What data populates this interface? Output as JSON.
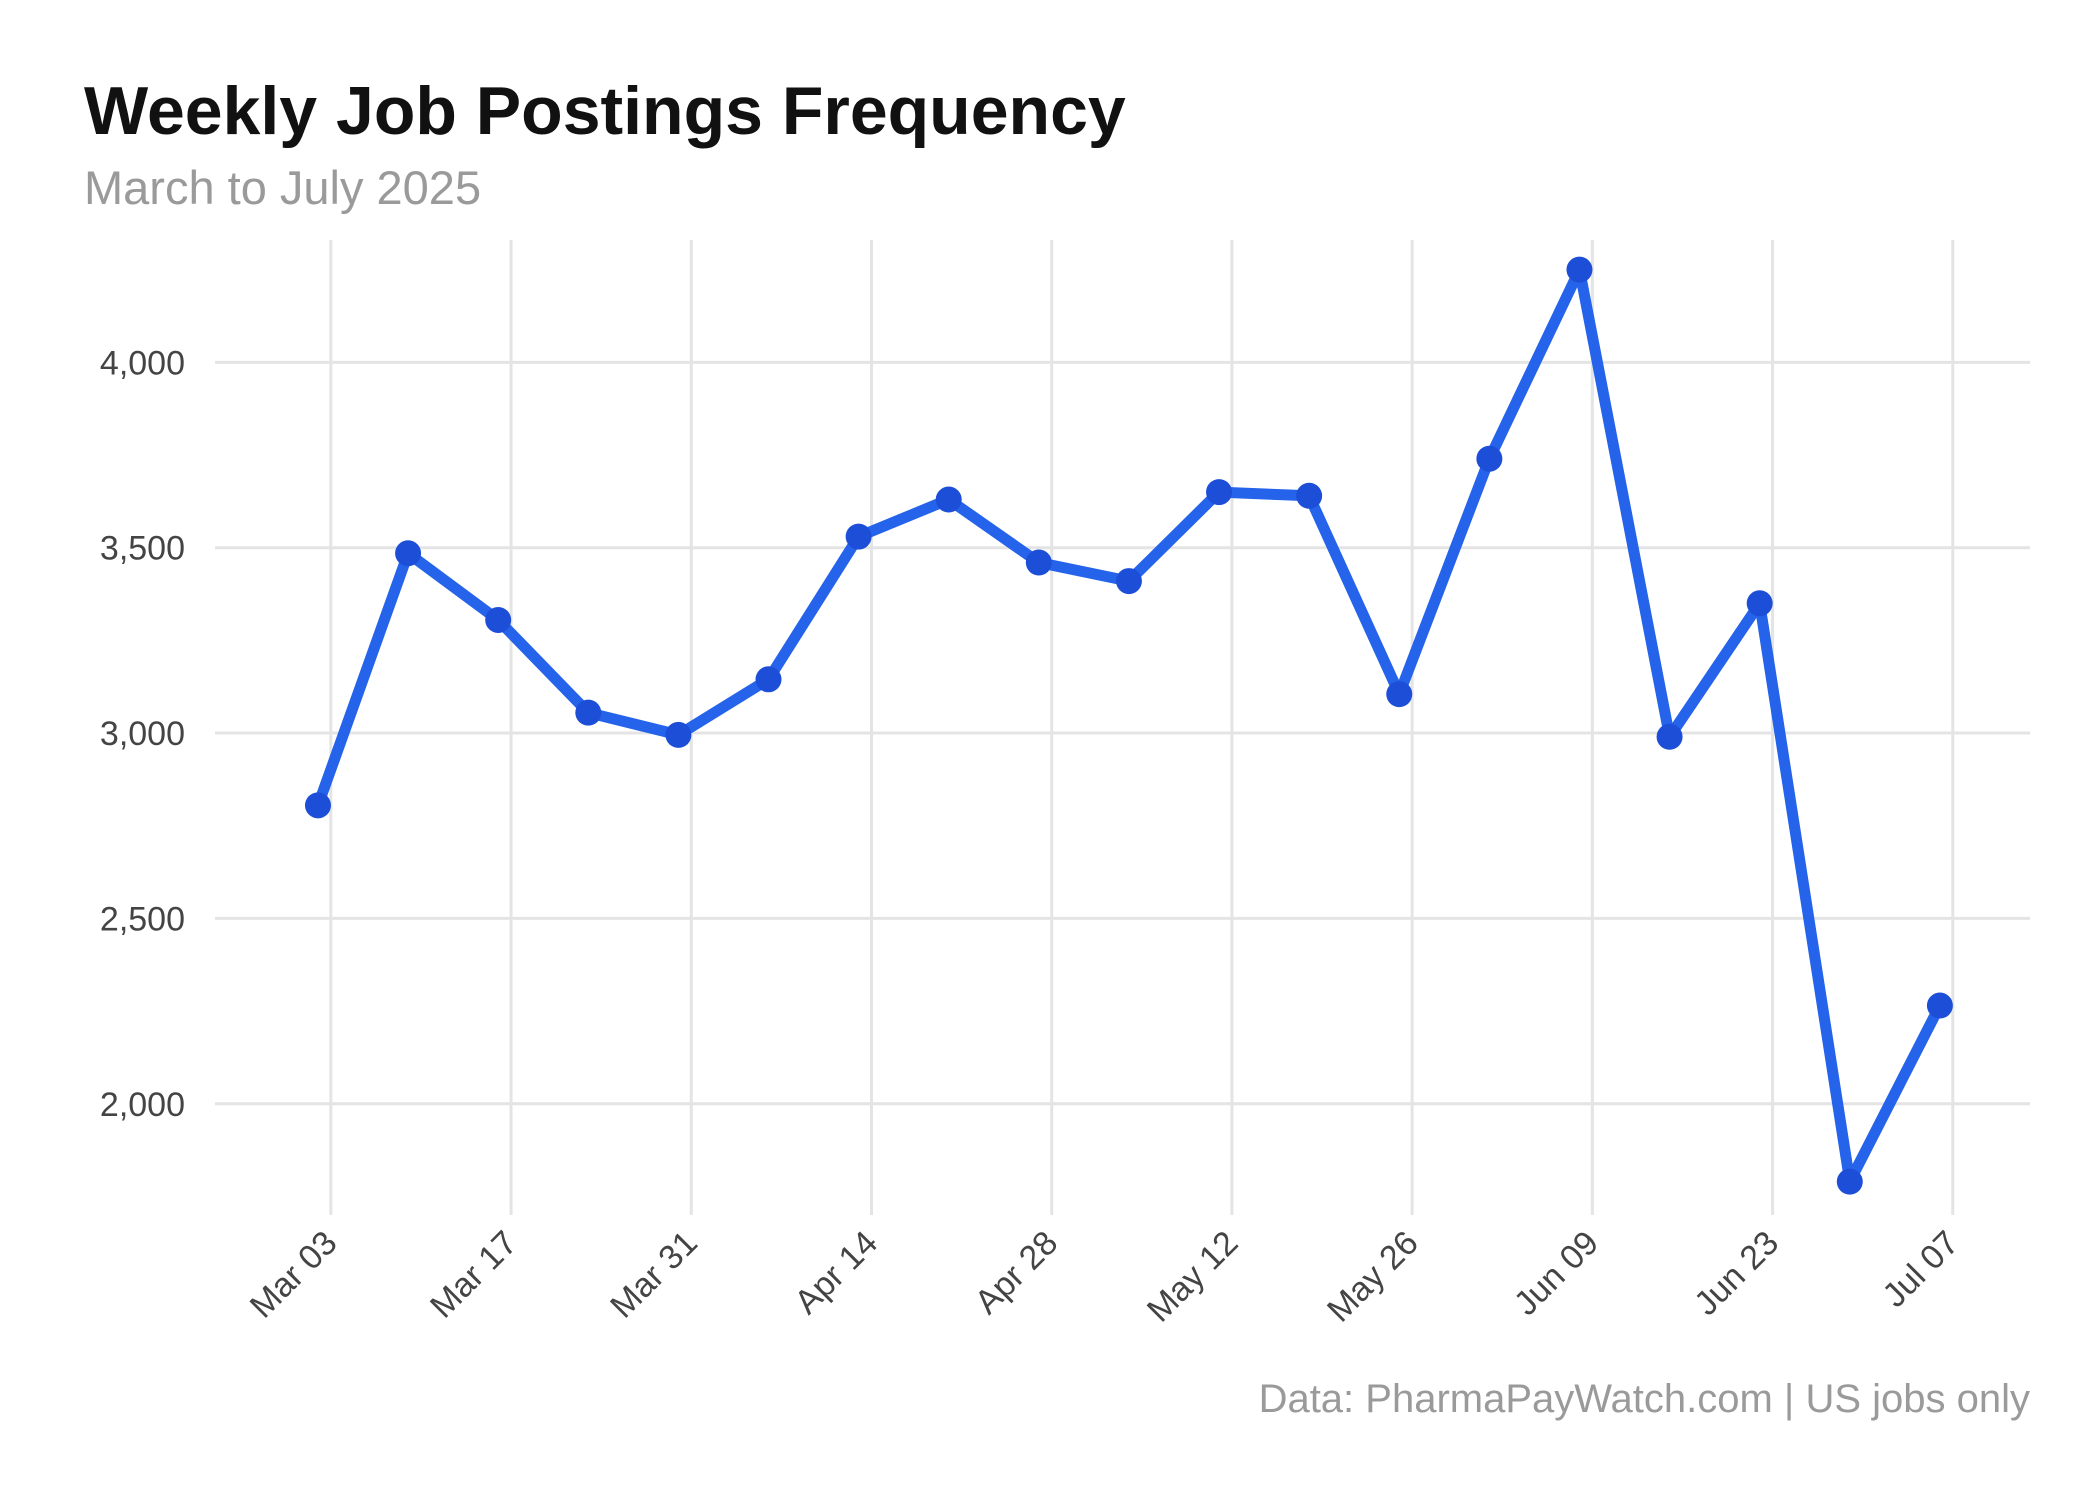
{
  "chart_data": {
    "type": "line",
    "title": "Weekly Job Postings Frequency",
    "subtitle": "March to July 2025",
    "caption": "Data: PharmaPayWatch.com | US jobs only",
    "xlabel": "",
    "ylabel": "",
    "x_tick_labels": [
      "Mar 03",
      "Mar 17",
      "Mar 31",
      "Apr 14",
      "Apr 28",
      "May 12",
      "May 26",
      "Jun 09",
      "Jun 23",
      "Jul 07"
    ],
    "x_tick_dates": [
      "2025-03-03",
      "2025-03-17",
      "2025-03-31",
      "2025-04-14",
      "2025-04-28",
      "2025-05-12",
      "2025-05-26",
      "2025-06-09",
      "2025-06-23",
      "2025-07-07"
    ],
    "y_ticks": [
      2000,
      2500,
      3000,
      3500,
      4000
    ],
    "y_tick_labels": [
      "2,000",
      "2,500",
      "3,000",
      "3,500",
      "4,000"
    ],
    "ylim": [
      1700,
      4330
    ],
    "xlim": [
      "2025-02-22",
      "2025-07-13"
    ],
    "grid": true,
    "line_color": "#2563eb",
    "point_color": "#1d4ed8",
    "series": [
      {
        "dates": [
          "2025-03-02",
          "2025-03-09",
          "2025-03-16",
          "2025-03-23",
          "2025-03-30",
          "2025-04-06",
          "2025-04-13",
          "2025-04-20",
          "2025-04-27",
          "2025-05-04",
          "2025-05-11",
          "2025-05-18",
          "2025-05-25",
          "2025-06-01",
          "2025-06-08",
          "2025-06-15",
          "2025-06-22",
          "2025-06-29",
          "2025-07-06"
        ],
        "values": [
          2805,
          3485,
          3305,
          3055,
          2995,
          3145,
          3530,
          3630,
          3460,
          3410,
          3650,
          3640,
          3105,
          3740,
          4250,
          2990,
          3350,
          1790,
          2265
        ]
      }
    ]
  }
}
